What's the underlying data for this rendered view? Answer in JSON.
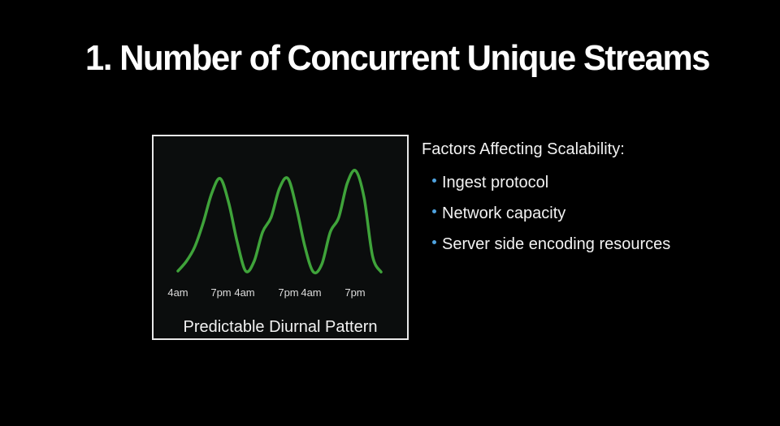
{
  "slide": {
    "title": "1. Number of Concurrent Unique Streams"
  },
  "chart_data": {
    "type": "line",
    "title": "Predictable Diurnal Pattern",
    "x_tick_labels": [
      "4am",
      "7pm",
      "4am",
      "7pm",
      "4am",
      "7pm"
    ],
    "line_color": "#3fa33a",
    "grid": false,
    "series": [
      {
        "values": [
          0.05,
          0.15,
          0.3,
          0.55,
          0.85,
          1.0,
          0.75,
          0.35,
          0.05,
          0.15,
          0.45,
          0.6,
          0.9,
          1.0,
          0.7,
          0.3,
          0.04,
          0.12,
          0.45,
          0.6,
          0.95,
          1.08,
          0.8,
          0.2,
          0.04
        ]
      }
    ]
  },
  "factors": {
    "heading": "Factors Affecting Scalability:",
    "bullet_color": "#4fa3e0",
    "items": [
      "Ingest protocol",
      "Network capacity",
      "Server side encoding resources"
    ]
  }
}
